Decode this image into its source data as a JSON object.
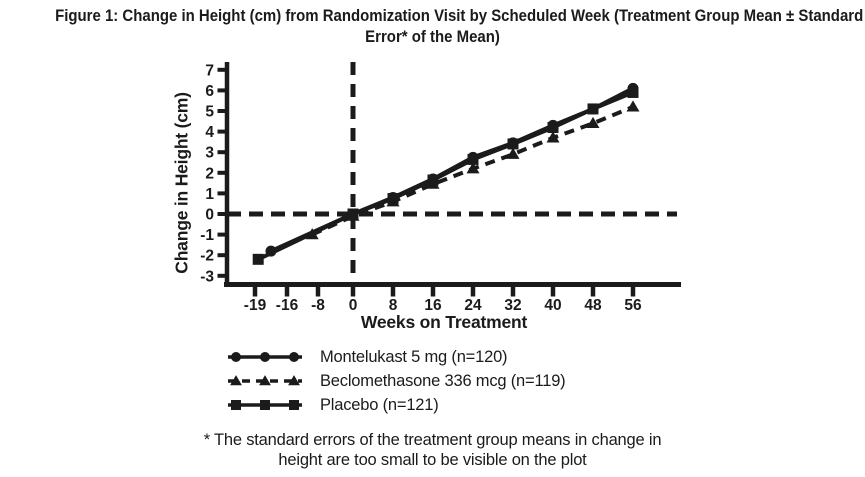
{
  "figure": {
    "title_line1": "Figure 1: Change in Height (cm) from Randomization Visit by Scheduled Week (Treatment Group Mean ± Standard",
    "title_line2": "Error* of the Mean)",
    "footnote_line1": "* The standard errors of the treatment group means in change in",
    "footnote_line2": "height are too small to be visible on the plot"
  },
  "chart_data": {
    "type": "line",
    "title": "Figure 1: Change in Height (cm) from Randomization Visit by Scheduled Week (Treatment Group Mean ± Standard Error* of the Mean)",
    "xlabel": "Weeks on Treatment",
    "ylabel": "Change in Height (cm)",
    "x_ticks": [
      -19,
      -16,
      -8,
      0,
      8,
      16,
      24,
      32,
      40,
      48,
      56
    ],
    "y_ticks": [
      7,
      6,
      5,
      4,
      3,
      2,
      1,
      0,
      -1,
      -2,
      -3
    ],
    "ylim": [
      -3,
      7
    ],
    "grid": false,
    "legend_position": "below",
    "reference_lines": [
      {
        "orientation": "vertical",
        "at_week": 0,
        "style": "dashed"
      },
      {
        "orientation": "horizontal",
        "at_value": 0,
        "style": "dashed"
      }
    ],
    "series": [
      {
        "name": "Montelukast 5 mg (n=120)",
        "marker": "circle",
        "line": "solid",
        "points": [
          [
            -17.5,
            -1.8
          ],
          [
            0,
            0.0
          ],
          [
            8,
            0.8
          ],
          [
            16,
            1.7
          ],
          [
            24,
            2.75
          ],
          [
            32,
            3.45
          ],
          [
            40,
            4.3
          ],
          [
            48,
            5.1
          ],
          [
            56,
            6.1
          ]
        ]
      },
      {
        "name": "Placebo (n=121)",
        "marker": "square",
        "line": "solid",
        "points": [
          [
            -18.7,
            -2.2
          ],
          [
            0,
            0.0
          ],
          [
            8,
            0.75
          ],
          [
            16,
            1.65
          ],
          [
            24,
            2.65
          ],
          [
            32,
            3.4
          ],
          [
            40,
            4.2
          ],
          [
            48,
            5.1
          ],
          [
            56,
            5.9
          ]
        ]
      },
      {
        "name": "Beclomethasone 336 mcg (n=119)",
        "marker": "triangle",
        "line": "dashed",
        "points": [
          [
            -9.5,
            -1.0
          ],
          [
            0,
            -0.1
          ],
          [
            8,
            0.6
          ],
          [
            16,
            1.45
          ],
          [
            24,
            2.2
          ],
          [
            32,
            2.9
          ],
          [
            40,
            3.7
          ],
          [
            48,
            4.4
          ],
          [
            56,
            5.2
          ]
        ]
      }
    ]
  },
  "legend": {
    "items": [
      {
        "label": "Montelukast 5 mg (n=120)",
        "marker": "circle",
        "line": "solid"
      },
      {
        "label": "Beclomethasone 336 mcg (n=119)",
        "marker": "triangle",
        "line": "dashed"
      },
      {
        "label": "Placebo (n=121)",
        "marker": "square",
        "line": "solid"
      }
    ]
  },
  "colors": {
    "ink": "#1b1b1b",
    "background": "#ffffff"
  }
}
